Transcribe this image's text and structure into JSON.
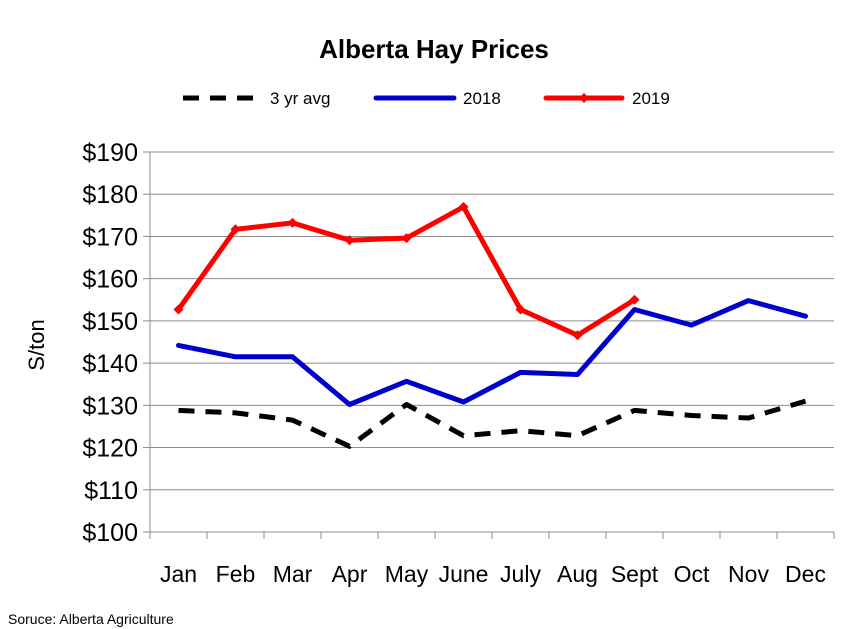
{
  "chart_data": {
    "type": "line",
    "title": "Alberta Hay Prices",
    "ylabel": "S/ton",
    "xlabel": "",
    "categories": [
      "Jan",
      "Feb",
      "Mar",
      "Apr",
      "May",
      "June",
      "July",
      "Aug",
      "Sept",
      "Oct",
      "Nov",
      "Dec"
    ],
    "ylim": [
      100,
      190
    ],
    "yticks": [
      100,
      110,
      120,
      130,
      140,
      150,
      160,
      170,
      180,
      190
    ],
    "ytick_labels": [
      "$100",
      "$110",
      "$120",
      "$130",
      "$140",
      "$150",
      "$160",
      "$170",
      "$180",
      "$190"
    ],
    "grid": true,
    "legend_position": "top",
    "series": [
      {
        "name": "3 yr avg",
        "color": "#000000",
        "style": "dashed",
        "values": [
          128.8,
          128.2,
          126.5,
          120.3,
          130.2,
          122.8,
          124.0,
          122.8,
          128.8,
          127.6,
          127.0,
          131.0
        ]
      },
      {
        "name": "2018",
        "color": "#0000cc",
        "style": "solid",
        "values": [
          144.2,
          141.5,
          141.5,
          130.2,
          135.7,
          130.8,
          137.8,
          137.3,
          152.7,
          149.0,
          154.8,
          151.1
        ]
      },
      {
        "name": "2019",
        "color": "#ff0000",
        "style": "solid",
        "values": [
          152.7,
          171.7,
          173.2,
          169.1,
          169.6,
          177.0,
          152.7,
          146.6,
          155.0,
          null,
          null,
          null
        ]
      }
    ]
  },
  "source": "Soruce: Alberta Agriculture"
}
